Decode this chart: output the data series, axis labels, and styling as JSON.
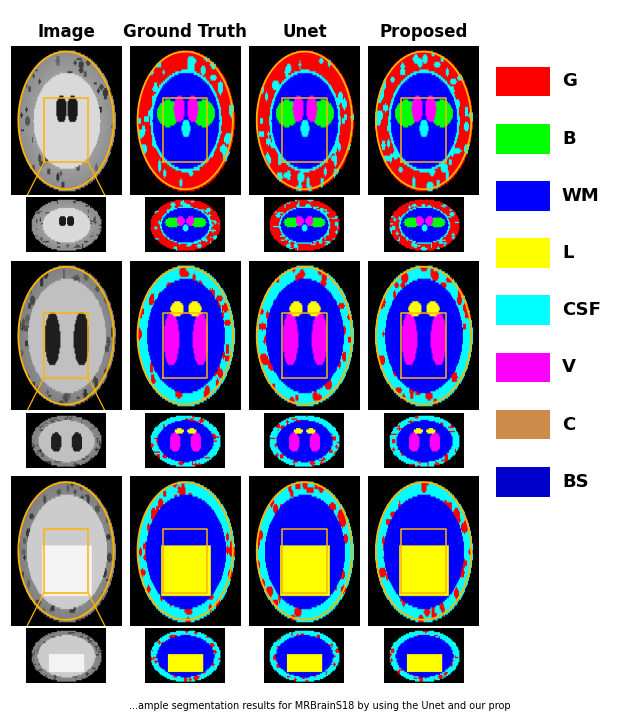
{
  "caption": "ample segmentation results for MRBrainS18 by using the Unet and our prop",
  "col_headers": [
    "Image",
    "Ground Truth",
    "Unet",
    "Proposed"
  ],
  "legend_items": [
    {
      "label": "G",
      "color": "#FF0000"
    },
    {
      "label": "B",
      "color": "#00FF00"
    },
    {
      "label": "WM",
      "color": "#0000FF"
    },
    {
      "label": "L",
      "color": "#FFFF00"
    },
    {
      "label": "CSF",
      "color": "#00FFFF"
    },
    {
      "label": "V",
      "color": "#FF00FF"
    },
    {
      "label": "C",
      "color": "#CD8B4A"
    },
    {
      "label": "BS",
      "color": "#0000CC"
    }
  ],
  "figure_bg": "#FFFFFF",
  "header_fontsize": 12,
  "legend_fontsize": 13,
  "n_rows": 3,
  "n_cols": 4,
  "figsize": [
    6.4,
    7.24
  ],
  "dpi": 100
}
